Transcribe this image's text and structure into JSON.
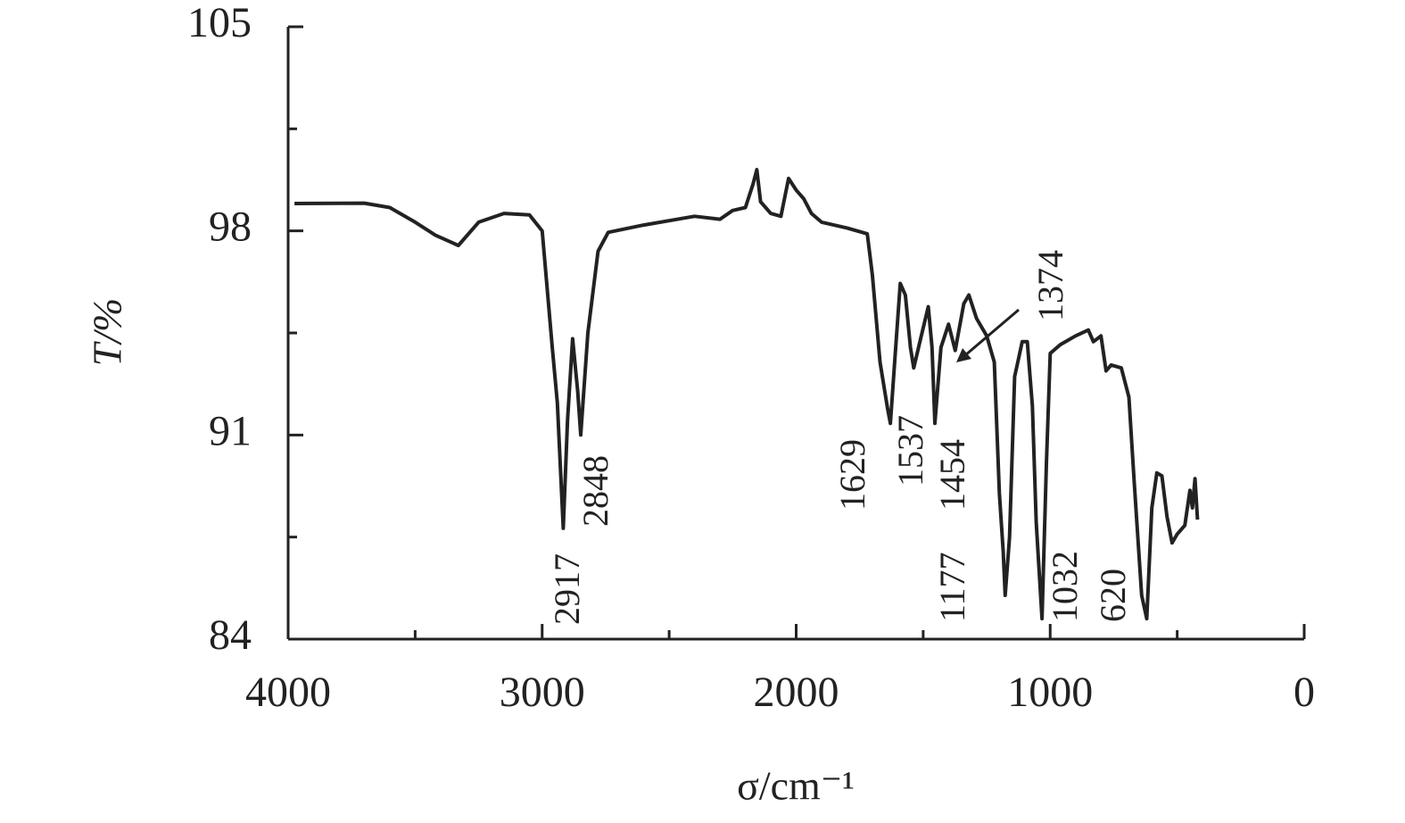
{
  "chart_data": {
    "type": "line",
    "x_label": "σ/cm⁻¹",
    "y_label": "T/%",
    "xlim": [
      4000,
      0
    ],
    "ylim": [
      84,
      105
    ],
    "xticks": [
      4000,
      3000,
      2000,
      1000,
      0
    ],
    "yticks": [
      84,
      91,
      98,
      105
    ],
    "xticks_minor": [
      3500,
      2500,
      1500,
      500
    ],
    "yticks_minor": [
      87.5,
      94.5,
      101.5
    ],
    "color": "#222222",
    "annotations": [
      "2917",
      "2848",
      "1629",
      "1537",
      "1454",
      "1374",
      "1177",
      "1032",
      "620"
    ],
    "x": [
      3975,
      3700,
      3600,
      3500,
      3420,
      3330,
      3250,
      3150,
      3050,
      3000,
      2960,
      2940,
      2917,
      2900,
      2880,
      2860,
      2848,
      2820,
      2780,
      2740,
      2600,
      2400,
      2300,
      2250,
      2200,
      2170,
      2155,
      2140,
      2100,
      2060,
      2030,
      2000,
      1970,
      1940,
      1900,
      1800,
      1720,
      1700,
      1670,
      1640,
      1629,
      1610,
      1590,
      1570,
      1550,
      1537,
      1510,
      1480,
      1465,
      1454,
      1430,
      1400,
      1374,
      1340,
      1320,
      1290,
      1250,
      1220,
      1200,
      1185,
      1177,
      1160,
      1140,
      1110,
      1090,
      1070,
      1055,
      1032,
      1015,
      1000,
      960,
      900,
      850,
      830,
      800,
      780,
      760,
      720,
      690,
      670,
      655,
      640,
      620,
      600,
      580,
      560,
      540,
      520,
      500,
      470,
      450,
      440,
      430,
      420
    ],
    "values": [
      98.94,
      98.95,
      98.8,
      98.3,
      97.85,
      97.5,
      98.3,
      98.6,
      98.55,
      98.0,
      94.0,
      92.1,
      87.8,
      91.5,
      94.3,
      92.5,
      91.0,
      94.5,
      97.3,
      97.95,
      98.2,
      98.5,
      98.4,
      98.7,
      98.8,
      99.6,
      100.1,
      99.0,
      98.6,
      98.5,
      99.8,
      99.4,
      99.1,
      98.6,
      98.3,
      98.1,
      97.9,
      96.5,
      93.5,
      91.9,
      91.4,
      93.8,
      96.2,
      95.8,
      94.0,
      93.3,
      94.3,
      95.4,
      94.0,
      91.4,
      94.0,
      94.8,
      93.9,
      95.5,
      95.8,
      95.0,
      94.4,
      93.5,
      89.0,
      87.0,
      85.5,
      87.5,
      93.0,
      94.2,
      94.2,
      92.0,
      88.0,
      84.7,
      90.0,
      93.8,
      94.1,
      94.4,
      94.6,
      94.2,
      94.4,
      93.2,
      93.4,
      93.3,
      92.3,
      89.5,
      87.5,
      85.5,
      84.7,
      88.5,
      89.7,
      89.6,
      88.2,
      87.3,
      87.6,
      87.9,
      89.1,
      88.5,
      89.5,
      88.1
    ]
  }
}
